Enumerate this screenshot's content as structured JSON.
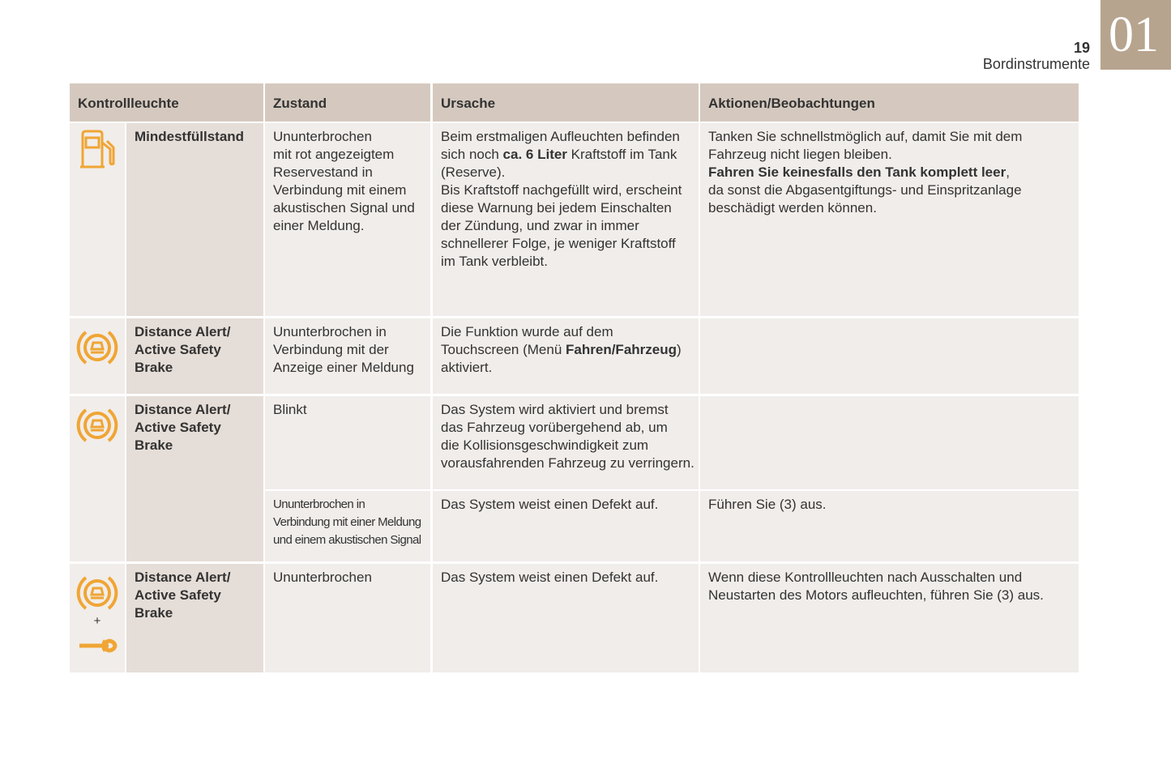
{
  "header": {
    "page_number": "19",
    "section": "Bordinstrumente",
    "chapter": "01"
  },
  "table": {
    "columns": [
      "Kontrollleuchte",
      "Zustand",
      "Ursache",
      "Aktionen/Beobachtungen"
    ],
    "groups": [
      {
        "name": [
          "Mindestfüllstand"
        ],
        "states": [
          {
            "zustand": [
              [
                "Ununterbrochen"
              ],
              [
                "mit rot angezeigtem"
              ],
              [
                "Reservestand in"
              ],
              [
                "Verbindung mit einem"
              ],
              [
                "akustischen Signal und"
              ],
              [
                "einer Meldung."
              ]
            ],
            "ursache": [
              [
                "Beim erstmaligen Aufleuchten befinden"
              ],
              [
                "sich noch ",
                "ca. 6 Liter",
                " Kraftstoff im Tank"
              ],
              [
                "(Reserve)."
              ],
              [
                "Bis Kraftstoff nachgefüllt wird, erscheint"
              ],
              [
                "diese Warnung bei jedem Einschalten"
              ],
              [
                "der Zündung, und zwar in immer"
              ],
              [
                "schnellerer Folge, je weniger Kraftstoff"
              ],
              [
                "im Tank verbleibt."
              ]
            ],
            "aktionen": [
              [
                "Tanken Sie schnellstmöglich auf, damit Sie mit dem"
              ],
              [
                "Fahrzeug nicht liegen bleiben."
              ],
              [
                "Fahren Sie keinesfalls den Tank komplett leer",
                ","
              ],
              [
                "da sonst die Abgasentgiftungs- und Einspritzanlage"
              ],
              [
                "beschädigt werden können."
              ]
            ]
          }
        ]
      },
      {
        "name": [
          "Distance Alert/",
          "Active Safety",
          "Brake"
        ],
        "states": [
          {
            "zustand": [
              [
                "Ununterbrochen in"
              ],
              [
                "Verbindung mit der"
              ],
              [
                "Anzeige einer Meldung"
              ]
            ],
            "ursache": [
              [
                "Die Funktion wurde auf dem"
              ],
              [
                "Touchscreen (Menü ",
                "Fahren/Fahrzeug",
                ")"
              ],
              [
                "aktiviert."
              ]
            ],
            "aktionen": []
          }
        ]
      },
      {
        "name": [
          "Distance Alert/",
          "Active Safety",
          "Brake"
        ],
        "states": [
          {
            "zustand": [
              [
                "Blinkt"
              ]
            ],
            "ursache": [
              [
                "Das System wird aktiviert und bremst"
              ],
              [
                "das Fahrzeug vorübergehend ab, um"
              ],
              [
                "die Kollisionsgeschwindigkeit zum"
              ],
              [
                "vorausfahrenden Fahrzeug zu verringern."
              ]
            ],
            "aktionen": []
          },
          {
            "zustand": [
              [
                "Ununterbrochen in"
              ],
              [
                "Verbindung mit einer Meldung"
              ],
              [
                "und einem akustischen Signal"
              ]
            ],
            "ursache": [
              [
                "Das System weist einen Defekt auf."
              ]
            ],
            "aktionen": [
              [
                "Führen Sie (3) aus."
              ]
            ]
          }
        ]
      },
      {
        "name": [
          "Distance Alert/",
          "Active Safety",
          "Brake"
        ],
        "icon_joiner": "+",
        "states": [
          {
            "zustand": [
              [
                "Ununterbrochen"
              ]
            ],
            "ursache": [
              [
                "Das System weist einen Defekt auf."
              ]
            ],
            "aktionen": [
              [
                "Wenn diese Kontrollleuchten nach Ausschalten und"
              ],
              [
                "Neustarten des Motors aufleuchten, führen Sie (3) aus."
              ]
            ]
          }
        ]
      }
    ]
  }
}
